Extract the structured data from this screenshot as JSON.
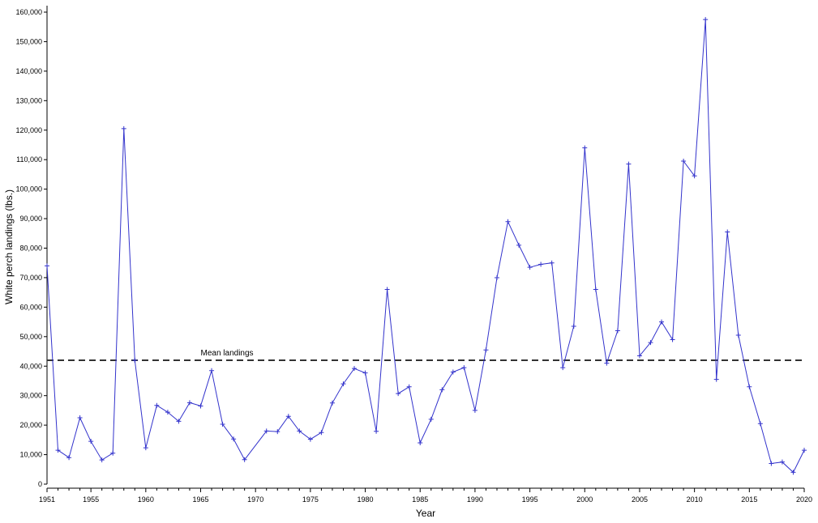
{
  "chart_data": {
    "type": "line",
    "xlabel": "Year",
    "ylabel": "White perch landings (lbs.)",
    "xlim": [
      1951,
      2020
    ],
    "ylim": [
      0,
      160000
    ],
    "x_ticks": [
      1951,
      1955,
      1960,
      1965,
      1970,
      1975,
      1980,
      1985,
      1990,
      1995,
      2000,
      2005,
      2010,
      2015,
      2020
    ],
    "y_ticks": [
      0,
      10000,
      20000,
      30000,
      40000,
      50000,
      60000,
      70000,
      80000,
      90000,
      100000,
      110000,
      120000,
      130000,
      140000,
      150000,
      160000
    ],
    "y_tick_labels": [
      "0",
      "10,000",
      "20,000",
      "30,000",
      "40,000",
      "50,000",
      "60,000",
      "70,000",
      "80,000",
      "90,000",
      "100,000",
      "110,000",
      "120,000",
      "130,000",
      "140,000",
      "150,000",
      "160,000"
    ],
    "grid": false,
    "line_color": "#3333cc",
    "mean_line": {
      "label": "Mean landings",
      "value": 42000,
      "color": "#333333",
      "style": "dashed"
    },
    "series": [
      {
        "x": [
          1951,
          1952,
          1953,
          1954,
          1955,
          1956,
          1957,
          1958,
          1959,
          1960,
          1961,
          1962,
          1963,
          1964,
          1965,
          1966,
          1967,
          1968,
          1969,
          1971,
          1972,
          1973,
          1974,
          1975,
          1976,
          1977,
          1978,
          1979,
          1980,
          1981,
          1982,
          1983,
          1984,
          1985,
          1986,
          1987,
          1988,
          1989,
          1990,
          1991,
          1992,
          1993,
          1994,
          1995,
          1996,
          1997,
          1998,
          1999,
          2000,
          2001,
          2002,
          2003,
          2004,
          2005,
          2006,
          2007,
          2008,
          2009,
          2010,
          2011,
          2012,
          2013,
          2014,
          2015,
          2016,
          2017,
          2018,
          2019,
          2020
        ],
        "y": [
          74000,
          11500,
          9000,
          22500,
          14500,
          8200,
          10500,
          120500,
          42000,
          12300,
          26700,
          24400,
          21300,
          27600,
          26500,
          38500,
          20300,
          15300,
          8300,
          18000,
          17800,
          23000,
          18000,
          15200,
          17500,
          27500,
          34000,
          39200,
          37700,
          17900,
          66000,
          30700,
          33000,
          14000,
          22000,
          32000,
          38000,
          39500,
          25000,
          45500,
          70000,
          89000,
          81000,
          73500,
          74500,
          75000,
          39500,
          53500,
          114000,
          66000,
          41000,
          52000,
          108500,
          43500,
          48000,
          55000,
          49000,
          109500,
          104500,
          157500,
          35500,
          85500,
          50500,
          33000,
          20500,
          7000,
          7500,
          4000,
          11500
        ]
      }
    ]
  }
}
